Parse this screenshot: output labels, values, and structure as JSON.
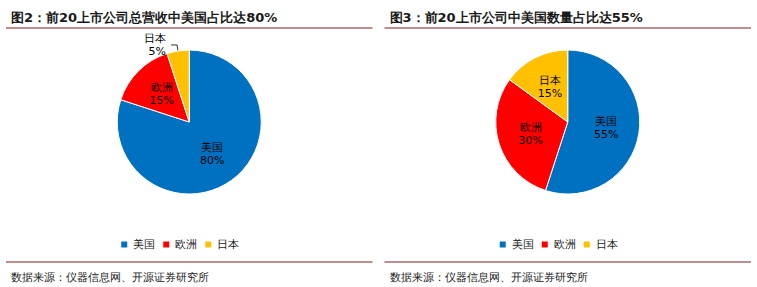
{
  "chart_data": [
    {
      "type": "pie",
      "title": "图2：前20上市公司总营收中美国占比达80%",
      "categories": [
        "美国",
        "欧洲",
        "日本"
      ],
      "values": [
        80,
        15,
        5
      ],
      "value_labels": [
        "80%",
        "15%",
        "5%"
      ],
      "colors": [
        "#0070C0",
        "#FF0000",
        "#FFC000"
      ],
      "data_labels": true,
      "legend": "bottom",
      "source": "数据来源：仪器信息网、开源证券研究所"
    },
    {
      "type": "pie",
      "title": "图3：前20上市公司中美国数量占比达55%",
      "categories": [
        "美国",
        "欧洲",
        "日本"
      ],
      "values": [
        55,
        30,
        15
      ],
      "value_labels": [
        "55%",
        "30%",
        "15%"
      ],
      "colors": [
        "#0070C0",
        "#FF0000",
        "#FFC000"
      ],
      "data_labels": true,
      "legend": "bottom",
      "source": "数据来源：仪器信息网、开源证券研究所"
    }
  ]
}
